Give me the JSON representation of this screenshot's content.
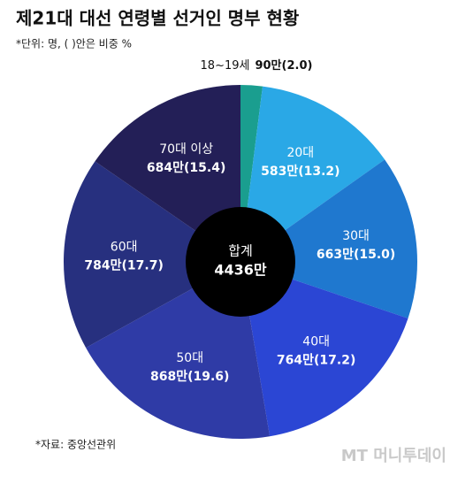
{
  "chart_data": {
    "type": "pie",
    "title": "제21대 대선 연령별 선거인 명부 현황",
    "subtitle": "*단위: 명, ( )안은 비중 %",
    "categories": [
      "18~19세",
      "20대",
      "30대",
      "40대",
      "50대",
      "60대",
      "70대 이상"
    ],
    "values": [
      2.0,
      13.2,
      15.0,
      17.2,
      19.6,
      17.7,
      15.4
    ],
    "value_labels": [
      "(2.0)",
      "(13.2)",
      "(15.0)",
      "(17.2)",
      "(19.6)",
      "(17.7)",
      "(15.4)"
    ],
    "count_labels": [
      "90만",
      "583만",
      "663만",
      "764만",
      "868만",
      "784만",
      "684만"
    ],
    "colors": [
      "#1a9e8f",
      "#2aa8e6",
      "#1f78cf",
      "#2b46d4",
      "#2f3ba6",
      "#27307f",
      "#231f57"
    ],
    "total_title": "합계",
    "total_label": "4436만",
    "source": "*자료: 중앙선관위",
    "watermark": "MT 머니투데이"
  }
}
